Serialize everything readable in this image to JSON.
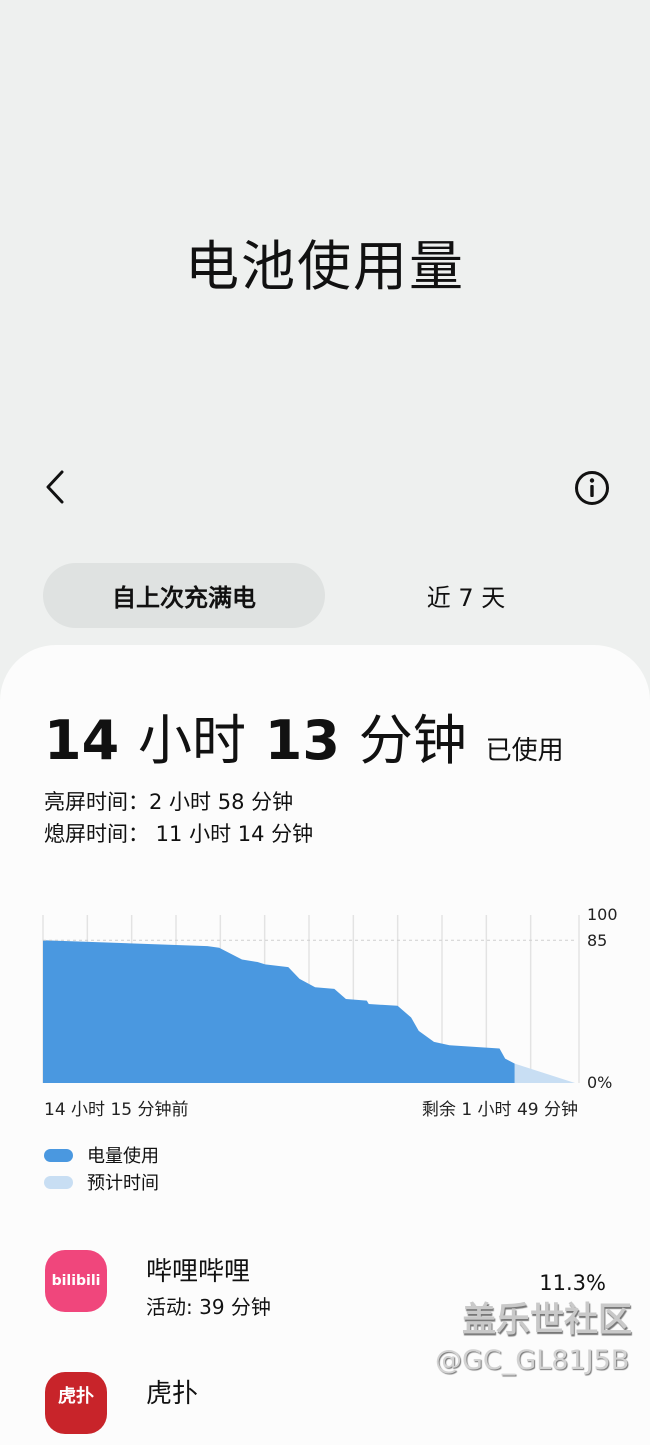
{
  "header": {
    "title": "电池使用量",
    "back_icon": "chevron-left-icon",
    "info_icon": "info-circle-icon"
  },
  "tabs": [
    {
      "label": "自上次充满电",
      "selected": true
    },
    {
      "label": "近 7 天",
      "selected": false
    }
  ],
  "summary": {
    "hours": "14",
    "hours_unit": "小时",
    "minutes": "13",
    "minutes_unit": "分钟",
    "suffix": "已使用",
    "screen_on": "亮屏时间：2 小时 58 分钟",
    "screen_off": "熄屏时间： 11 小时 14 分钟"
  },
  "chart_data": {
    "type": "area",
    "x_unit": "hours relative to now",
    "xlim": [
      -14.25,
      1.82
    ],
    "ylim": [
      0,
      100
    ],
    "y_ticks": [
      "100",
      "85",
      "0%"
    ],
    "reference_line": 85,
    "x_label_left": "14 小时 15 分钟前",
    "x_label_right": "剩余 1 小时 49 分钟",
    "grid": "vertical",
    "series": [
      {
        "name": "电量使用",
        "color": "#4a98e0",
        "points": [
          [
            -14.25,
            85
          ],
          [
            -9.28,
            81.5
          ],
          [
            -8.93,
            80.5
          ],
          [
            -8.24,
            73.5
          ],
          [
            -7.77,
            72
          ],
          [
            -7.54,
            70.6
          ],
          [
            -6.84,
            69
          ],
          [
            -6.5,
            62
          ],
          [
            -6.03,
            57
          ],
          [
            -5.45,
            56
          ],
          [
            -5.1,
            50
          ],
          [
            -4.47,
            49
          ],
          [
            -4.41,
            47
          ],
          [
            -3.54,
            46
          ],
          [
            -3.13,
            39
          ],
          [
            -2.9,
            31
          ],
          [
            -2.44,
            24.5
          ],
          [
            -1.97,
            22.5
          ],
          [
            -0.46,
            20.5
          ],
          [
            -0.29,
            14.5
          ],
          [
            0,
            11.5
          ]
        ]
      },
      {
        "name": "预计时间",
        "color": "#c8def3",
        "points": [
          [
            0,
            11.5
          ],
          [
            1.82,
            0
          ]
        ]
      }
    ]
  },
  "apps": [
    {
      "name": "哔哩哔哩",
      "activity": "活动: 39 分钟",
      "percent": "11.3%",
      "icon_color": "#f0467c",
      "icon_text": "bilibili"
    },
    {
      "name": "虎扑",
      "icon_color": "#c8242a",
      "icon_text": "虎扑"
    }
  ],
  "watermark": {
    "line1": "盖乐世社区",
    "line2": "@GC_GL81J5B"
  }
}
